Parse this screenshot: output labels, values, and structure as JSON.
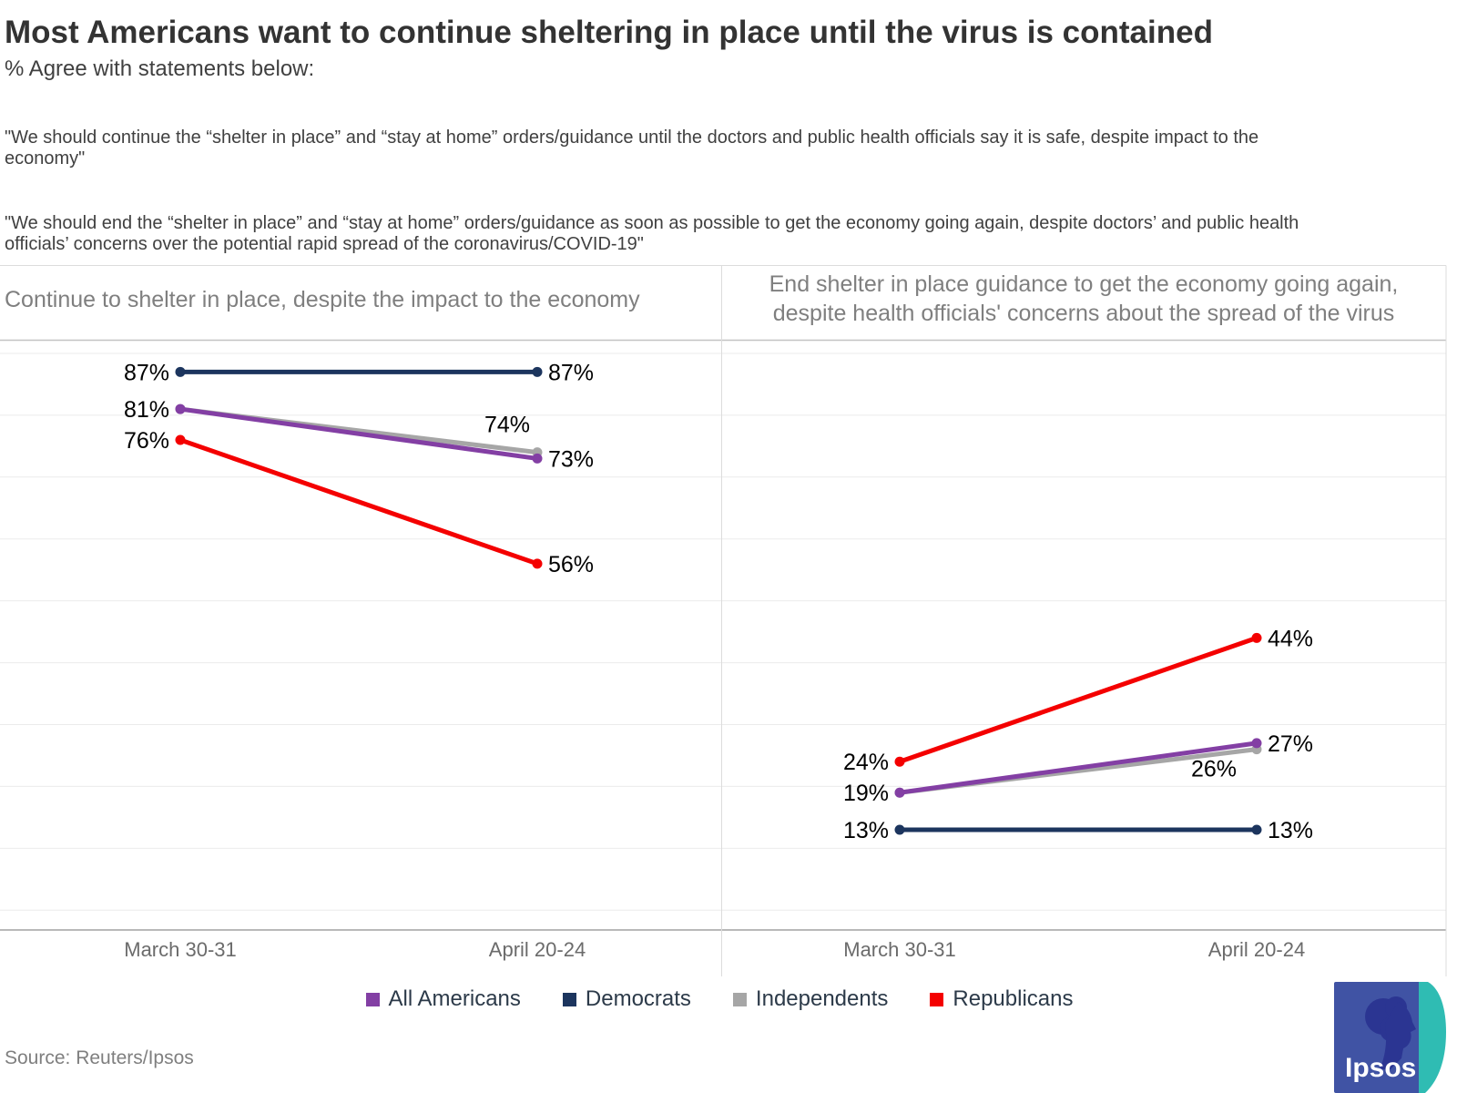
{
  "header": {
    "title": "Most Americans want to continue sheltering in place until the virus is contained",
    "subtitle": "% Agree with statements below:",
    "statement1_line1": "\"We should continue the “shelter in place” and “stay at home” orders/guidance until the doctors and public health officials say it is safe, despite impact to the",
    "statement1_line2": "economy\"",
    "statement2_line1": "\"We should end the “shelter in place” and “stay at home” orders/guidance as soon as possible to get the economy going again, despite doctors’ and public health",
    "statement2_line2": "officials’ concerns over the potential rapid spread of the coronavirus/COVID-19\""
  },
  "chart_data": {
    "type": "line",
    "categories": [
      "March 30-31",
      "April 20-24"
    ],
    "value_suffix": "%",
    "ylim": [
      0,
      100
    ],
    "gridlines": {
      "every": 10,
      "orientation": "horizontal"
    },
    "legend_position": "bottom-center",
    "panels": [
      {
        "title": "Continue to shelter in place, despite the impact to the economy",
        "series": [
          {
            "name": "All Americans",
            "color": "#833fa4",
            "values": [
              81,
              73
            ]
          },
          {
            "name": "Democrats",
            "color": "#1c355e",
            "values": [
              87,
              87
            ]
          },
          {
            "name": "Independents",
            "color": "#a6a6a6",
            "values": [
              81,
              74
            ]
          },
          {
            "name": "Republicans",
            "color": "#f40000",
            "values": [
              76,
              56
            ]
          }
        ]
      },
      {
        "title": "End shelter in place guidance to get the economy going again, despite health officials' concerns about the spread of the virus",
        "title_line1": "End shelter in place guidance to get the economy going again,",
        "title_line2": "despite health officials' concerns about the spread of the virus",
        "series": [
          {
            "name": "All Americans",
            "color": "#833fa4",
            "values": [
              19,
              27
            ]
          },
          {
            "name": "Democrats",
            "color": "#1c355e",
            "values": [
              13,
              13
            ]
          },
          {
            "name": "Independents",
            "color": "#a6a6a6",
            "values": [
              19,
              26
            ]
          },
          {
            "name": "Republicans",
            "color": "#f40000",
            "values": [
              24,
              44
            ]
          }
        ]
      }
    ],
    "legend": [
      {
        "label": "All Americans",
        "color": "#833fa4"
      },
      {
        "label": "Democrats",
        "color": "#1c355e"
      },
      {
        "label": "Independents",
        "color": "#a6a6a6"
      },
      {
        "label": "Republicans",
        "color": "#f40000"
      }
    ]
  },
  "footer": {
    "source": "Source: Reuters/Ipsos",
    "logo_text": "Ipsos"
  }
}
